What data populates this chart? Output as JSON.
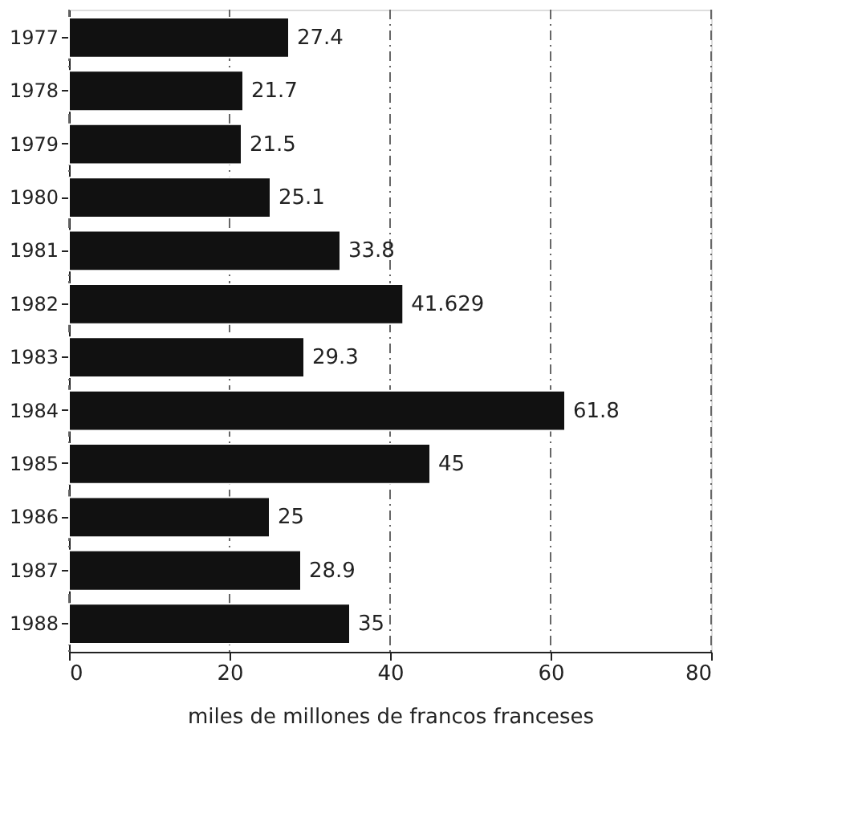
{
  "chart_data": {
    "type": "bar",
    "orientation": "horizontal",
    "xlabel": "miles de millones de francos franceses",
    "categories": [
      "1977",
      "1978",
      "1979",
      "1980",
      "1981",
      "1982",
      "1983",
      "1984",
      "1985",
      "1986",
      "1987",
      "1988"
    ],
    "values": [
      27.4,
      21.7,
      21.5,
      25.1,
      33.8,
      41.629,
      29.3,
      61.8,
      45,
      25,
      28.9,
      35
    ],
    "color": "#111111",
    "xlim": [
      0,
      80
    ],
    "xticks": [
      0,
      20,
      40,
      60,
      80
    ],
    "grid": "x",
    "data_labels": true
  }
}
